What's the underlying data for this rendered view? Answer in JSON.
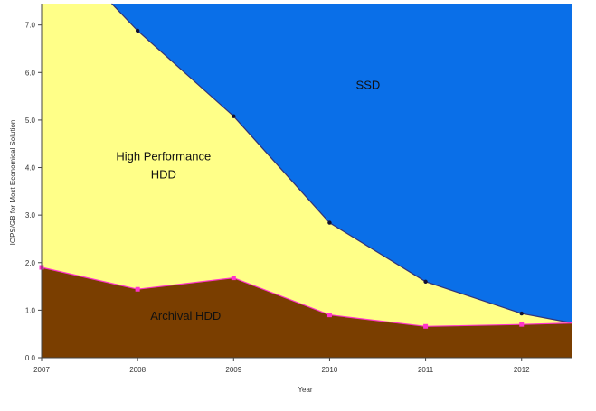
{
  "chart_data": {
    "type": "area",
    "title": "",
    "xlabel": "Year",
    "ylabel": "IOPS/GB for Most Economical Solution",
    "x": [
      2007,
      2008,
      2009,
      2010,
      2011,
      2012
    ],
    "xlim": [
      2007,
      2012.53
    ],
    "ylim": [
      0,
      7.45
    ],
    "yticks": [
      "0.0",
      "1.0",
      "2.0",
      "3.0",
      "4.0",
      "5.0",
      "6.0",
      "7.0"
    ],
    "xticks": [
      "2007",
      "2008",
      "2009",
      "2010",
      "2011",
      "2012"
    ],
    "grid": false,
    "legend": "none",
    "boundaries": {
      "archival_top": {
        "x": [
          2007,
          2008,
          2009,
          2010,
          2011,
          2012,
          2012.53
        ],
        "y": [
          1.9,
          1.44,
          1.68,
          0.9,
          0.66,
          0.7,
          0.73
        ]
      },
      "hdd_top": {
        "x": [
          2007.73,
          2008,
          2009,
          2010,
          2011,
          2012,
          2012.53
        ],
        "y": [
          7.45,
          6.88,
          5.08,
          2.84,
          1.6,
          0.93,
          0.73
        ]
      }
    },
    "regions": [
      {
        "label": "SSD",
        "color": "#0a6fe8",
        "label_at": [
          2010.4,
          5.65
        ]
      },
      {
        "label": "High Performance HDD",
        "label_line1": "High Performance",
        "label_line2": "HDD",
        "color": "#ffff88",
        "label_at": [
          2008.27,
          4.15
        ]
      },
      {
        "label": "Archival HDD",
        "color": "#7a3e00",
        "label_at": [
          2008.5,
          0.8
        ]
      }
    ],
    "line_colors": {
      "archival_top": "#ff33cc",
      "hdd_top": "#333377"
    },
    "marker_colors": {
      "archival_top": "#ff33cc",
      "hdd_top": "#111133"
    }
  }
}
